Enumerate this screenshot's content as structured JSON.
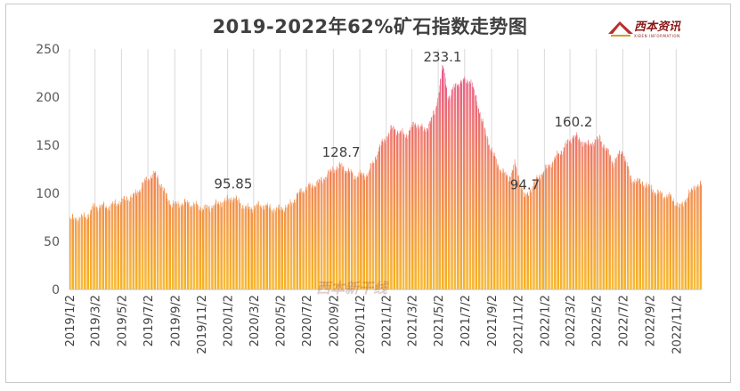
{
  "chart_data": {
    "type": "bar",
    "title": "2019-2022年62%矿石指数走势图",
    "ylim": [
      0,
      250
    ],
    "yticks": [
      0,
      50,
      100,
      150,
      200,
      250
    ],
    "grid": "vertical",
    "colors": {
      "top": "#e84f91",
      "bottom": "#f7b320"
    },
    "x_tick_labels": [
      "2019/1/2",
      "2019/3/2",
      "2019/5/2",
      "2019/7/2",
      "2019/9/2",
      "2019/11/2",
      "2020/1/2",
      "2020/3/2",
      "2020/5/2",
      "2020/7/2",
      "2020/9/2",
      "2020/11/2",
      "2021/1/2",
      "2021/3/2",
      "2021/5/2",
      "2021/7/2",
      "2021/9/2",
      "2021/11/2",
      "2022/1/2",
      "2022/3/2",
      "2022/5/2",
      "2022/7/2",
      "2022/9/2",
      "2022/11/2"
    ],
    "anchors": [
      {
        "date": "2019-01-02",
        "value": 73
      },
      {
        "date": "2019-02-10",
        "value": 76
      },
      {
        "date": "2019-03-01",
        "value": 87
      },
      {
        "date": "2019-04-01",
        "value": 86
      },
      {
        "date": "2019-05-01",
        "value": 92
      },
      {
        "date": "2019-06-01",
        "value": 98
      },
      {
        "date": "2019-07-01",
        "value": 116
      },
      {
        "date": "2019-07-20",
        "value": 120
      },
      {
        "date": "2019-08-10",
        "value": 100
      },
      {
        "date": "2019-08-25",
        "value": 88
      },
      {
        "date": "2019-10-01",
        "value": 90
      },
      {
        "date": "2019-11-10",
        "value": 84
      },
      {
        "date": "2019-12-15",
        "value": 90
      },
      {
        "date": "2020-01-15",
        "value": 95.85
      },
      {
        "date": "2020-02-15",
        "value": 84
      },
      {
        "date": "2020-03-20",
        "value": 88
      },
      {
        "date": "2020-04-20",
        "value": 83
      },
      {
        "date": "2020-05-20",
        "value": 86
      },
      {
        "date": "2020-06-20",
        "value": 103
      },
      {
        "date": "2020-08-01",
        "value": 112
      },
      {
        "date": "2020-09-01",
        "value": 125
      },
      {
        "date": "2020-09-20",
        "value": 128.7
      },
      {
        "date": "2020-10-20",
        "value": 118
      },
      {
        "date": "2020-11-20",
        "value": 120
      },
      {
        "date": "2020-12-20",
        "value": 150
      },
      {
        "date": "2021-01-15",
        "value": 168
      },
      {
        "date": "2021-02-15",
        "value": 160
      },
      {
        "date": "2021-03-10",
        "value": 173
      },
      {
        "date": "2021-04-01",
        "value": 165
      },
      {
        "date": "2021-04-25",
        "value": 185
      },
      {
        "date": "2021-05-12",
        "value": 233.1
      },
      {
        "date": "2021-05-25",
        "value": 200
      },
      {
        "date": "2021-06-15",
        "value": 215
      },
      {
        "date": "2021-07-15",
        "value": 218
      },
      {
        "date": "2021-08-01",
        "value": 192
      },
      {
        "date": "2021-08-20",
        "value": 160
      },
      {
        "date": "2021-09-15",
        "value": 130
      },
      {
        "date": "2021-10-10",
        "value": 115
      },
      {
        "date": "2021-10-25",
        "value": 130
      },
      {
        "date": "2021-11-18",
        "value": 94.7
      },
      {
        "date": "2021-12-15",
        "value": 115
      },
      {
        "date": "2022-01-15",
        "value": 130
      },
      {
        "date": "2022-02-20",
        "value": 150
      },
      {
        "date": "2022-03-10",
        "value": 160.2
      },
      {
        "date": "2022-04-10",
        "value": 150
      },
      {
        "date": "2022-05-10",
        "value": 157
      },
      {
        "date": "2022-06-10",
        "value": 132
      },
      {
        "date": "2022-07-01",
        "value": 145
      },
      {
        "date": "2022-07-20",
        "value": 115
      },
      {
        "date": "2022-08-20",
        "value": 110
      },
      {
        "date": "2022-09-20",
        "value": 100
      },
      {
        "date": "2022-10-20",
        "value": 96
      },
      {
        "date": "2022-11-10",
        "value": 85
      },
      {
        "date": "2022-12-15",
        "value": 108
      }
    ],
    "annotations": [
      {
        "text": "95.85",
        "date": "2020-01-15",
        "value": 95.85
      },
      {
        "text": "128.7",
        "date": "2020-09-20",
        "value": 128.7
      },
      {
        "text": "233.1",
        "date": "2021-05-12",
        "value": 233.1
      },
      {
        "text": "94.7",
        "date": "2021-11-18",
        "value": 94.7
      },
      {
        "text": "160.2",
        "date": "2022-03-10",
        "value": 160.2
      }
    ]
  },
  "logo": {
    "name": "西本资讯",
    "sub": "XIBEN INFORMATION"
  },
  "watermark": "西本新干线"
}
